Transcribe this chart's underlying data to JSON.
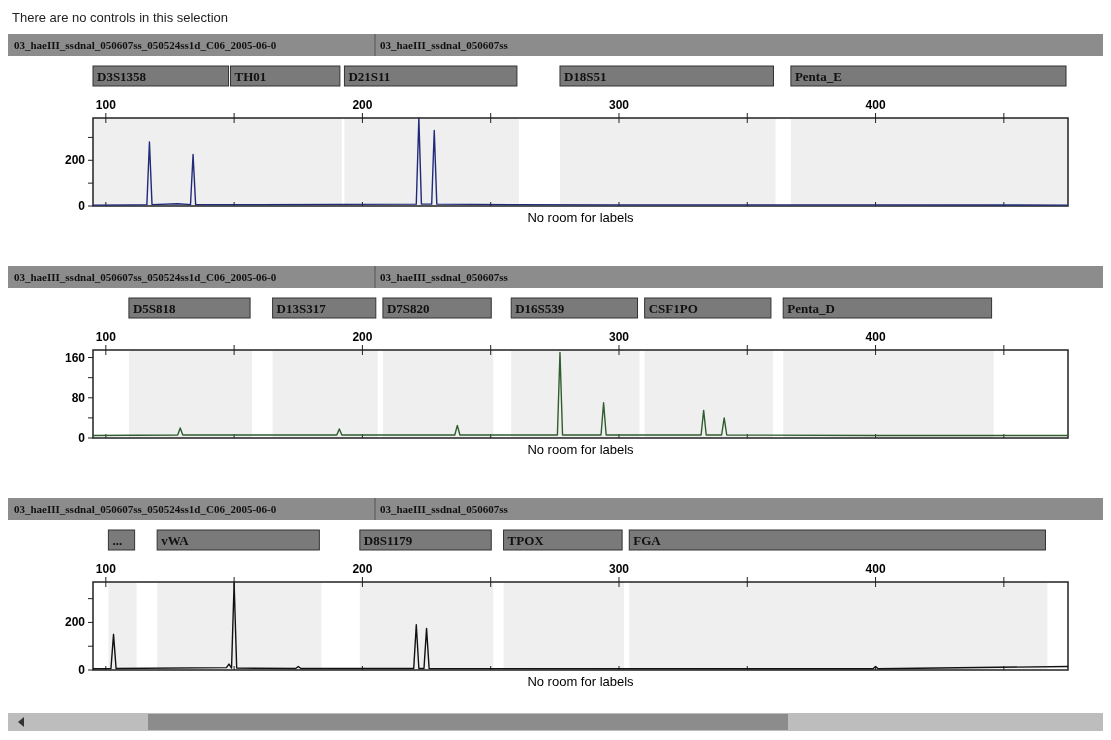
{
  "chart_data": [
    {
      "type": "line",
      "title": "03_haeIII_ssdnal_050607ss_050524ss1d_C06_2005-06-0",
      "subtitle": "03_haeIII_ssdnal_050607ss",
      "xlabel": "No room for labels",
      "annotations": [
        "There are no controls in this selection"
      ],
      "xlim": [
        95,
        475
      ],
      "xticks": [
        100,
        {
          "value": 150,
          "label": null
        },
        200,
        {
          "value": 250,
          "label": null
        },
        300,
        {
          "value": 350,
          "label": null
        },
        400,
        {
          "value": 450,
          "label": null
        }
      ],
      "ylim": [
        0,
        385
      ],
      "yticks": [
        0,
        {
          "value": 100,
          "label": null
        },
        200,
        {
          "value": 300,
          "label": null
        }
      ],
      "bands": [
        {
          "axis": "x",
          "from": 95,
          "to": 148.6,
          "label": "D3S1358",
          "color": "#7a7a7a"
        },
        {
          "axis": "x",
          "from": 148.6,
          "to": 192,
          "label": "TH01",
          "color": "#7a7a7a"
        },
        {
          "axis": "x",
          "from": 193,
          "to": 261,
          "label": "D21S11",
          "color": "#7a7a7a"
        },
        {
          "axis": "x",
          "from": 277,
          "to": 361,
          "label": "D18S51",
          "color": "#7a7a7a"
        },
        {
          "axis": "x",
          "from": 367,
          "to": 475,
          "label": "Penta_E",
          "color": "#7a7a7a"
        }
      ],
      "series": [
        {
          "color": "#1f2a78",
          "x": [
            95,
            110,
            116,
            117,
            118,
            128,
            133,
            134,
            135,
            160,
            221,
            222,
            223,
            227,
            228,
            229,
            260,
            300,
            400,
            475
          ],
          "values": [
            4,
            5,
            6,
            280,
            6,
            10,
            6,
            225,
            6,
            6,
            8,
            385,
            8,
            8,
            330,
            8,
            6,
            5,
            5,
            4
          ]
        }
      ],
      "marker": "none",
      "grid": false
    },
    {
      "type": "line",
      "title": "03_haeIII_ssdnal_050607ss_050524ss1d_C06_2005-06-0",
      "subtitle": "03_haeIII_ssdnal_050607ss",
      "xlabel": "No room for labels",
      "xlim": [
        95,
        475
      ],
      "xticks": [
        100,
        {
          "value": 150,
          "label": null
        },
        200,
        {
          "value": 250,
          "label": null
        },
        300,
        {
          "value": 350,
          "label": null
        },
        400,
        {
          "value": 450,
          "label": null
        }
      ],
      "ylim": [
        0,
        175
      ],
      "yticks": [
        0,
        {
          "value": 40,
          "label": null
        },
        80,
        {
          "value": 120,
          "label": null
        },
        160
      ],
      "bands": [
        {
          "axis": "x",
          "from": 109,
          "to": 157,
          "label": "D5S818",
          "color": "#7a7a7a"
        },
        {
          "axis": "x",
          "from": 165,
          "to": 206,
          "label": "D13S317",
          "color": "#7a7a7a"
        },
        {
          "axis": "x",
          "from": 208,
          "to": 251,
          "label": "D7S820",
          "color": "#7a7a7a"
        },
        {
          "axis": "x",
          "from": 258,
          "to": 308,
          "label": "D16S539",
          "color": "#7a7a7a"
        },
        {
          "axis": "x",
          "from": 310,
          "to": 360,
          "label": "CSF1PO",
          "color": "#7a7a7a"
        },
        {
          "axis": "x",
          "from": 364,
          "to": 446,
          "label": "Penta_D",
          "color": "#7a7a7a"
        }
      ],
      "series": [
        {
          "color": "#2e5e2e",
          "x": [
            95,
            128,
            129,
            130,
            190,
            191,
            192,
            236,
            237,
            238,
            276,
            277,
            278,
            293,
            294,
            295,
            332,
            333,
            334,
            340,
            341,
            342,
            400,
            475
          ],
          "values": [
            5,
            6,
            20,
            6,
            6,
            18,
            6,
            6,
            25,
            6,
            6,
            170,
            6,
            6,
            70,
            6,
            6,
            55,
            6,
            6,
            40,
            6,
            5,
            5
          ]
        }
      ],
      "marker": "none",
      "grid": false
    },
    {
      "type": "line",
      "title": "03_haeIII_ssdnal_050607ss_050524ss1d_C06_2005-06-0",
      "subtitle": "03_haeIII_ssdnal_050607ss",
      "xlabel": "No room for labels",
      "xlim": [
        95,
        475
      ],
      "xticks": [
        100,
        {
          "value": 150,
          "label": null
        },
        200,
        {
          "value": 250,
          "label": null
        },
        300,
        {
          "value": 350,
          "label": null
        },
        400,
        {
          "value": 450,
          "label": null
        }
      ],
      "ylim": [
        0,
        370
      ],
      "yticks": [
        0,
        {
          "value": 100,
          "label": null
        },
        200,
        {
          "value": 300,
          "label": null
        }
      ],
      "bands": [
        {
          "axis": "x",
          "from": 101,
          "to": 112,
          "label": "...",
          "color": "#7a7a7a"
        },
        {
          "axis": "x",
          "from": 120,
          "to": 184,
          "label": "vWA",
          "color": "#7a7a7a"
        },
        {
          "axis": "x",
          "from": 199,
          "to": 251,
          "label": "D8S1179",
          "color": "#7a7a7a"
        },
        {
          "axis": "x",
          "from": 255,
          "to": 302,
          "label": "TPOX",
          "color": "#7a7a7a"
        },
        {
          "axis": "x",
          "from": 304,
          "to": 467,
          "label": "FGA",
          "color": "#7a7a7a"
        }
      ],
      "series": [
        {
          "color": "#111111",
          "x": [
            95,
            102,
            103,
            104,
            147,
            148,
            149,
            150,
            151,
            174,
            175,
            176,
            220,
            221,
            222,
            224,
            225,
            226,
            399,
            400,
            401,
            475
          ],
          "values": [
            5,
            6,
            150,
            6,
            10,
            25,
            8,
            367,
            8,
            6,
            15,
            6,
            6,
            190,
            6,
            6,
            175,
            6,
            5,
            15,
            5,
            15
          ]
        }
      ],
      "marker": "none",
      "grid": false
    }
  ]
}
